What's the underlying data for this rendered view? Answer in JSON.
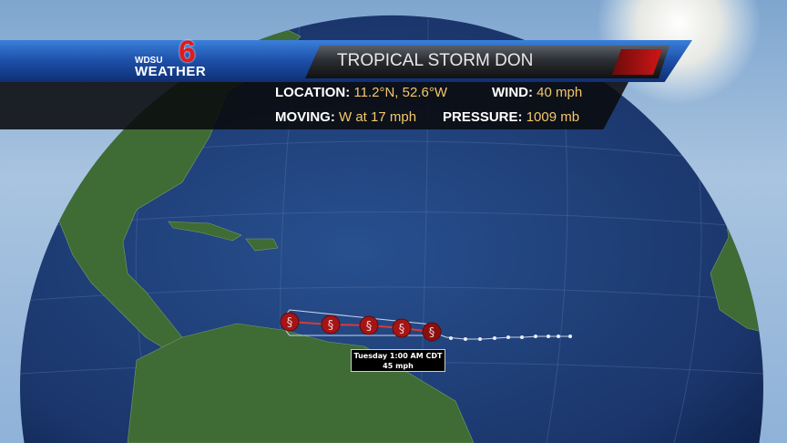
{
  "logo": {
    "station": "WDSU",
    "brand": "WEATHER",
    "channel": "6"
  },
  "banner": {
    "title": "TROPICAL STORM DON"
  },
  "info": {
    "location_label": "LOCATION:",
    "location_value": "11.2°N, 52.6°W",
    "wind_label": "WIND:",
    "wind_value": "40 mph",
    "moving_label": "MOVING:",
    "moving_value": "W at 17 mph",
    "pressure_label": "PRESSURE:",
    "pressure_value": "1009 mb"
  },
  "forecast_tooltip": {
    "time": "Tuesday 1:00 AM CDT",
    "wind": "45 mph"
  },
  "map": {
    "storm_icon": "hurricane-symbol-icon",
    "forecast_points": 5,
    "past_track_points": 10
  },
  "colors": {
    "accent_blue": "#1d4fa8",
    "value_gold": "#f4c86b",
    "storm_red": "#b01818",
    "ocean": "#1f3f74"
  }
}
